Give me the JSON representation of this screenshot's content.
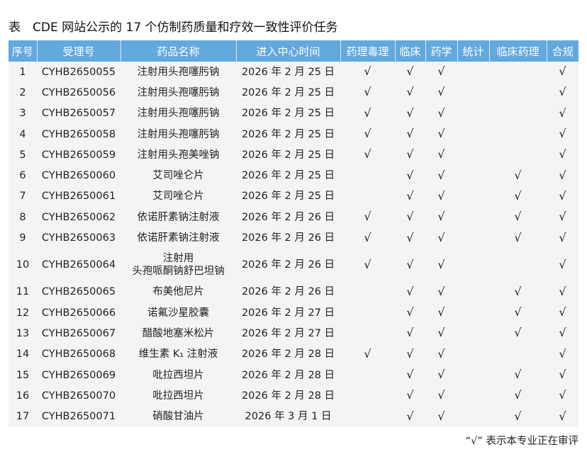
{
  "title": "表　CDE 网站公示的 17 个仿制药质量和疗效一致性评价任务",
  "headers": [
    "序号",
    "受理号",
    "药品名称",
    "进入中心时间",
    "药理毒理",
    "临床",
    "药学",
    "统计",
    "临床药理",
    "合规"
  ],
  "check_symbol": "√",
  "header_color": "#62a9de",
  "rows": [
    [
      "1",
      "CYHB2650055",
      "注射用头孢噻肟钠",
      "2026 年 2 月 25 日",
      1,
      1,
      1,
      0,
      0,
      1
    ],
    [
      "2",
      "CYHB2650056",
      "注射用头孢噻肟钠",
      "2026 年 2 月 25 日",
      1,
      1,
      1,
      0,
      0,
      1
    ],
    [
      "3",
      "CYHB2650057",
      "注射用头孢噻肟钠",
      "2026 年 2 月 25 日",
      1,
      1,
      1,
      0,
      0,
      1
    ],
    [
      "4",
      "CYHB2650058",
      "注射用头孢噻肟钠",
      "2026 年 2 月 25 日",
      1,
      1,
      1,
      0,
      0,
      1
    ],
    [
      "5",
      "CYHB2650059",
      "注射用头孢美唑钠",
      "2026 年 2 月 25 日",
      1,
      1,
      1,
      0,
      0,
      1
    ],
    [
      "6",
      "CYHB2650060",
      "艾司唑仑片",
      "2026 年 2 月 25 日",
      0,
      1,
      1,
      0,
      1,
      1
    ],
    [
      "7",
      "CYHB2650061",
      "艾司唑仑片",
      "2026 年 2 月 25 日",
      0,
      1,
      1,
      0,
      1,
      1
    ],
    [
      "8",
      "CYHB2650062",
      "依诺肝素钠注射液",
      "2026 年 2 月 26 日",
      1,
      1,
      1,
      0,
      1,
      1
    ],
    [
      "9",
      "CYHB2650063",
      "依诺肝素钠注射液",
      "2026 年 2 月 26 日",
      1,
      1,
      1,
      0,
      1,
      1
    ],
    [
      "10",
      "CYHB2650064",
      "注射用\n头孢哌酮钠舒巴坦钠",
      "2026 年 2 月 26 日",
      1,
      1,
      1,
      0,
      0,
      1
    ],
    [
      "11",
      "CYHB2650065",
      "布美他尼片",
      "2026 年 2 月 26 日",
      0,
      1,
      1,
      0,
      1,
      1
    ],
    [
      "12",
      "CYHB2650066",
      "诺氟沙星胶囊",
      "2026 年 2 月 27 日",
      0,
      1,
      1,
      0,
      1,
      1
    ],
    [
      "13",
      "CYHB2650067",
      "醋酸地塞米松片",
      "2026 年 2 月 27 日",
      0,
      1,
      1,
      0,
      1,
      1
    ],
    [
      "14",
      "CYHB2650068",
      "维生素 K₁ 注射液",
      "2026 年 2 月 28 日",
      1,
      1,
      1,
      0,
      0,
      1
    ],
    [
      "15",
      "CYHB2650069",
      "吡拉西坦片",
      "2026 年 2 月 28 日",
      0,
      1,
      1,
      0,
      1,
      1
    ],
    [
      "16",
      "CYHB2650070",
      "吡拉西坦片",
      "2026 年 2 月 28 日",
      0,
      1,
      1,
      0,
      1,
      1
    ],
    [
      "17",
      "CYHB2650071",
      "硝酸甘油片",
      "2026 年 3 月 1 日",
      0,
      1,
      1,
      0,
      1,
      1
    ]
  ],
  "note": "“√” 表示本专业正在审评"
}
